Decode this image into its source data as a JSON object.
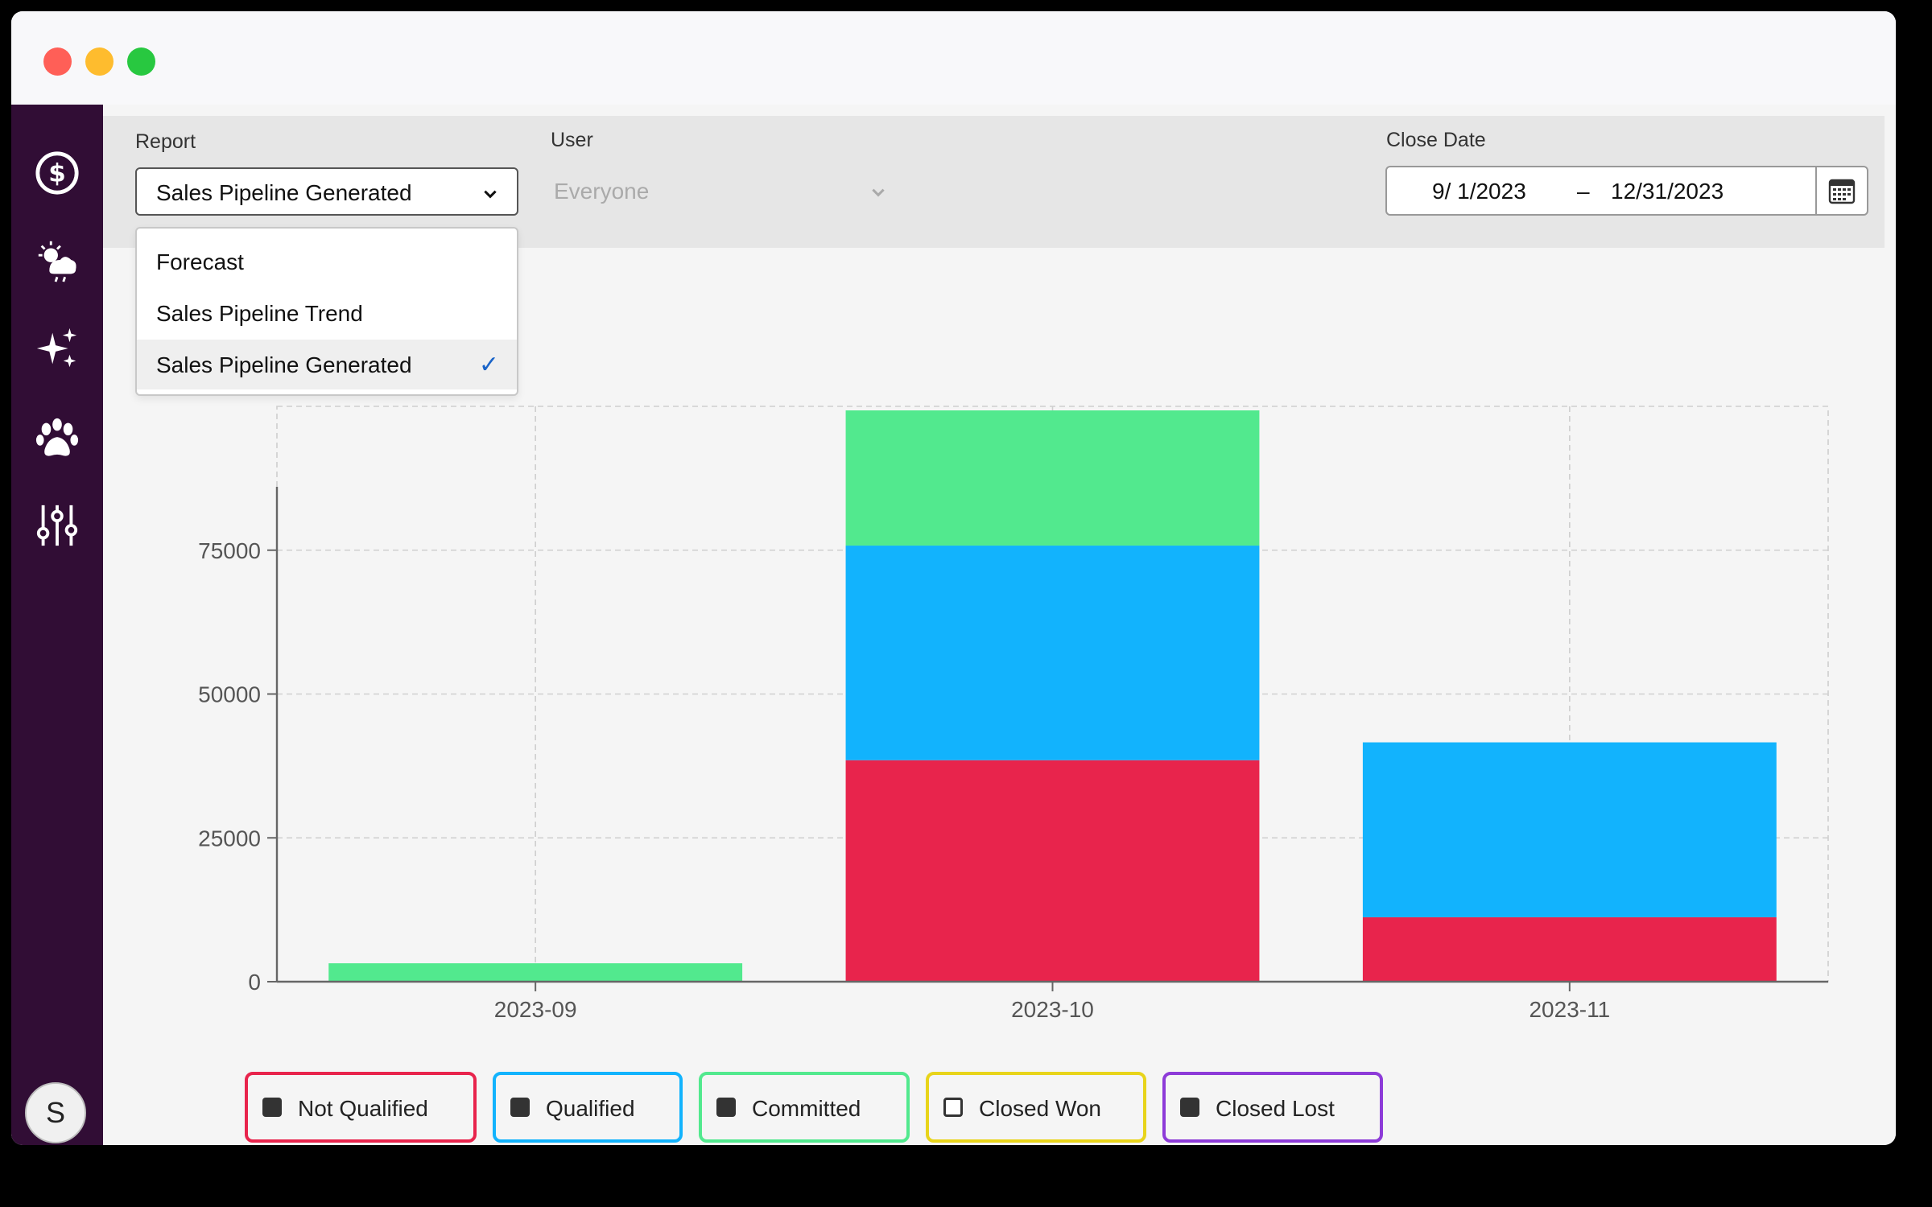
{
  "window": {
    "traffic_lights": [
      "#ff5f57",
      "#febc2e",
      "#28c840"
    ]
  },
  "sidebar": {
    "items": [
      {
        "icon": "dollar-icon"
      },
      {
        "icon": "weather-icon"
      },
      {
        "icon": "sparkles-icon"
      },
      {
        "icon": "paw-icon"
      },
      {
        "icon": "sliders-icon"
      }
    ],
    "avatar_initial": "S"
  },
  "filters": {
    "report_label": "Report",
    "report_value": "Sales Pipeline Generated",
    "user_label": "User",
    "user_value": "Everyone",
    "close_date_label": "Close Date",
    "date_start": "9/ 1/2023",
    "date_separator": "–",
    "date_end": "12/31/2023"
  },
  "dropdown": {
    "options": [
      "Forecast",
      "Sales Pipeline Trend",
      "Sales Pipeline Generated"
    ],
    "selected_index": 2
  },
  "chart_data": {
    "type": "bar",
    "stacked": true,
    "categories": [
      "2023-09",
      "2023-10",
      "2023-11"
    ],
    "series": [
      {
        "name": "Not Qualified",
        "color": "#e8244c",
        "values": [
          0,
          38500,
          11200
        ]
      },
      {
        "name": "Qualified",
        "color": "#12b3fd",
        "values": [
          0,
          37300,
          30400
        ]
      },
      {
        "name": "Committed",
        "color": "#52e98e",
        "values": [
          3200,
          23500,
          0
        ]
      },
      {
        "name": "Closed Lost",
        "color": "#8d3bd8",
        "values": [
          0,
          0,
          0
        ]
      }
    ],
    "yticks": [
      0,
      25000,
      50000,
      75000
    ],
    "ylim": [
      0,
      100000
    ],
    "grid": true
  },
  "legend": [
    {
      "label": "Not Qualified",
      "color": "#e8244c",
      "checked": true
    },
    {
      "label": "Qualified",
      "color": "#12b3fd",
      "checked": true
    },
    {
      "label": "Committed",
      "color": "#52e98e",
      "checked": true
    },
    {
      "label": "Closed Won",
      "color": "#e8d41a",
      "checked": false
    },
    {
      "label": "Closed Lost",
      "color": "#8d3bd8",
      "checked": true
    }
  ]
}
